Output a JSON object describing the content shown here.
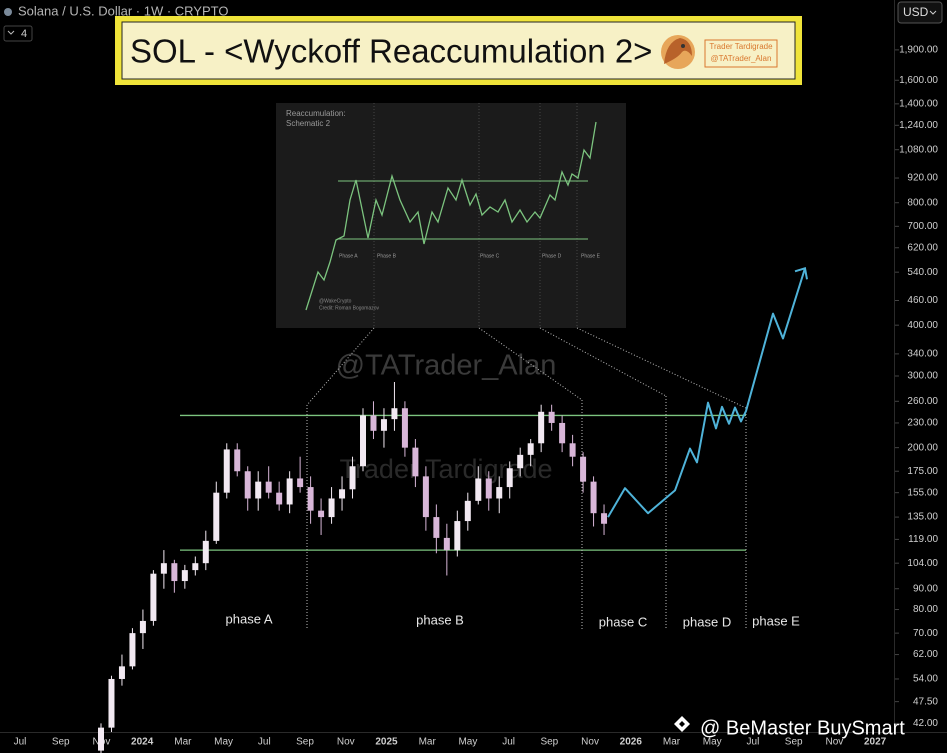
{
  "header": {
    "symbol": "Solana / U.S. Dollar · 1W · CRYPTO",
    "indicator_count": 4,
    "currency": "USD"
  },
  "banner": {
    "title": "SOL - <Wyckoff Reaccumulation 2>",
    "badge_name": "Trader Tardigrade",
    "badge_handle": "@TATrader_Alan"
  },
  "watermarks": {
    "handle": "@TATrader_Alan",
    "name": "Trader Tardigrade",
    "footer": "@ BeMaster BuySmart"
  },
  "inset": {
    "title": "Reaccumulation:",
    "subtitle": "Schematic 2",
    "phases": [
      "Phase A",
      "Phase B",
      "Phase C",
      "Phase D",
      "Phase E"
    ],
    "credit_1": "@WakeCrypto",
    "credit_2": "Credit: Roman Bogomazov"
  },
  "chart_data": {
    "type": "candlestick",
    "log_scale": true,
    "up_color": "#f2e9f2",
    "down_color": "#d8b6d8",
    "open": [
      36,
      41,
      54,
      58,
      70,
      75,
      98,
      104,
      94,
      100,
      104,
      118,
      155,
      198,
      175,
      150,
      165,
      155,
      145,
      168,
      160,
      140,
      135,
      150,
      158,
      180,
      240,
      220,
      235,
      250,
      200,
      170,
      135,
      120,
      112,
      132,
      148,
      168,
      150,
      160,
      178,
      192,
      205,
      245,
      230,
      205,
      190,
      165,
      138
    ],
    "high": [
      42,
      55,
      62,
      72,
      80,
      100,
      112,
      106,
      103,
      108,
      125,
      165,
      205,
      205,
      180,
      175,
      180,
      165,
      175,
      190,
      170,
      150,
      160,
      170,
      190,
      250,
      260,
      250,
      290,
      260,
      210,
      180,
      145,
      130,
      140,
      155,
      180,
      175,
      170,
      185,
      200,
      210,
      255,
      255,
      240,
      215,
      195,
      170,
      145
    ],
    "low": [
      34,
      40,
      52,
      57,
      64,
      73,
      90,
      88,
      90,
      97,
      100,
      116,
      150,
      170,
      140,
      140,
      150,
      140,
      138,
      155,
      130,
      122,
      130,
      140,
      150,
      175,
      210,
      200,
      220,
      190,
      160,
      125,
      110,
      97,
      108,
      125,
      145,
      140,
      138,
      150,
      170,
      180,
      195,
      220,
      195,
      180,
      155,
      128,
      122
    ],
    "close": [
      41,
      54,
      58,
      70,
      75,
      98,
      104,
      94,
      100,
      104,
      118,
      155,
      198,
      175,
      150,
      165,
      155,
      145,
      168,
      160,
      140,
      135,
      150,
      158,
      180,
      240,
      220,
      235,
      250,
      200,
      170,
      135,
      120,
      112,
      132,
      148,
      168,
      150,
      160,
      178,
      192,
      205,
      245,
      230,
      205,
      190,
      165,
      138,
      130
    ],
    "ylim": [
      40,
      2520
    ],
    "yticks": [
      {
        "value": 1900,
        "label": "1,900.00"
      },
      {
        "value": 1600,
        "label": "1,600.00"
      },
      {
        "value": 1400,
        "label": "1,400.00"
      },
      {
        "value": 1240,
        "label": "1,240.00"
      },
      {
        "value": 1080,
        "label": "1,080.00"
      },
      {
        "value": 920,
        "label": "920.00"
      },
      {
        "value": 800,
        "label": "800.00"
      },
      {
        "value": 700,
        "label": "700.00"
      },
      {
        "value": 620,
        "label": "620.00"
      },
      {
        "value": 540,
        "label": "540.00"
      },
      {
        "value": 460,
        "label": "460.00"
      },
      {
        "value": 400,
        "label": "400.00"
      },
      {
        "value": 340,
        "label": "340.00"
      },
      {
        "value": 300,
        "label": "300.00"
      },
      {
        "value": 260,
        "label": "260.00"
      },
      {
        "value": 230,
        "label": "230.00"
      },
      {
        "value": 200,
        "label": "200.00"
      },
      {
        "value": 175,
        "label": "175.00"
      },
      {
        "value": 155,
        "label": "155.00"
      },
      {
        "value": 135,
        "label": "135.00"
      },
      {
        "value": 119,
        "label": "119.00"
      },
      {
        "value": 104,
        "label": "104.00"
      },
      {
        "value": 90,
        "label": "90.00"
      },
      {
        "value": 80,
        "label": "80.00"
      },
      {
        "value": 70,
        "label": "70.00"
      },
      {
        "value": 62,
        "label": "62.00"
      },
      {
        "value": 54,
        "label": "54.00"
      },
      {
        "value": 47.5,
        "label": "47.50"
      },
      {
        "value": 42,
        "label": "42.00"
      }
    ],
    "x_labels": [
      "Jul",
      "Sep",
      "Nov",
      "2024",
      "Mar",
      "May",
      "Jul",
      "Sep",
      "Nov",
      "2025",
      "Mar",
      "May",
      "Jul",
      "Sep",
      "Nov",
      "2026",
      "Mar",
      "May",
      "Jul",
      "Sep",
      "Nov",
      "2027"
    ],
    "levels": {
      "color": "#7cc47f",
      "values": [
        240,
        112
      ]
    },
    "projection": {
      "color": "#4fb3d9",
      "values": [
        135,
        159,
        138,
        157,
        199,
        184,
        258,
        223,
        252,
        229,
        251,
        232,
        246,
        427,
        371,
        552
      ]
    },
    "phases": [
      "phase A",
      "phase B",
      "phase C",
      "phase D",
      "phase E"
    ]
  }
}
